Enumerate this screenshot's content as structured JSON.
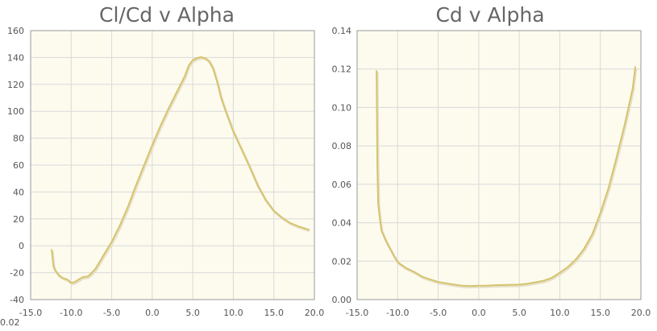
{
  "colors": {
    "plot_background": "#fdfbee",
    "grid": "#d9d9d9",
    "axis": "#999999",
    "series_line": "#d5c46e",
    "shadow": "#e6e0c8",
    "title_text": "#666666",
    "tick_text": "#555555"
  },
  "stray_label": "0.02",
  "chart_data": [
    {
      "type": "line",
      "title": "Cl/Cd v Alpha",
      "xlabel": "",
      "ylabel": "",
      "xlim": [
        -15,
        20
      ],
      "ylim": [
        -40,
        160
      ],
      "grid": true,
      "x_ticks": [
        -15,
        -10,
        -5,
        0,
        5,
        10,
        15,
        20
      ],
      "x_tick_labels": [
        "-15.0",
        "-10.0",
        "-5.0",
        "0.0",
        "5.0",
        "10.0",
        "15.0",
        "20.0"
      ],
      "y_ticks": [
        -40,
        -20,
        0,
        20,
        40,
        60,
        80,
        100,
        120,
        140,
        160
      ],
      "y_tick_labels": [
        "-40",
        "-20",
        "0",
        "20",
        "40",
        "60",
        "80",
        "100",
        "120",
        "140",
        "160"
      ],
      "series": [
        {
          "x": [
            -12.4,
            -12.2,
            -12.0,
            -11.5,
            -11.0,
            -10.5,
            -10.0,
            -9.6,
            -9.2,
            -8.8,
            -8.4,
            -8.0,
            -7.6,
            -7.0,
            -6.0,
            -5.0,
            -4.0,
            -3.0,
            -2.0,
            -1.0,
            0.0,
            1.0,
            2.0,
            3.0,
            4.0,
            4.5,
            5.0,
            5.5,
            6.0,
            6.5,
            7.0,
            7.5,
            8.0,
            8.5,
            9.0,
            10.0,
            11.0,
            12.0,
            13.0,
            14.0,
            15.0,
            16.0,
            17.0,
            18.0,
            19.3
          ],
          "y": [
            -3,
            -15,
            -18,
            -22,
            -24,
            -25,
            -27.5,
            -27,
            -25.5,
            -24,
            -23,
            -23,
            -21,
            -17,
            -7,
            3,
            15,
            29,
            45,
            60,
            75,
            89,
            102,
            114,
            126,
            134,
            138,
            139.5,
            140.3,
            139.5,
            137.5,
            132,
            122,
            110,
            101,
            85,
            72,
            59,
            45,
            34,
            26,
            21,
            17,
            14.5,
            12
          ]
        }
      ]
    },
    {
      "type": "line",
      "title": "Cd v Alpha",
      "xlabel": "",
      "ylabel": "",
      "xlim": [
        -15,
        20
      ],
      "ylim": [
        0,
        0.14
      ],
      "grid": true,
      "x_ticks": [
        -15,
        -10,
        -5,
        0,
        5,
        10,
        15,
        20
      ],
      "x_tick_labels": [
        "-15.0",
        "-10.0",
        "-5.0",
        "0.0",
        "5.0",
        "10.0",
        "15.0",
        "20.0"
      ],
      "y_ticks": [
        0,
        0.02,
        0.04,
        0.06,
        0.08,
        0.1,
        0.12,
        0.14
      ],
      "y_tick_labels": [
        "0.00",
        "0.02",
        "0.04",
        "0.06",
        "0.08",
        "0.10",
        "0.12",
        "0.14"
      ],
      "series": [
        {
          "x": [
            -12.6,
            -12.5,
            -12.4,
            -12.2,
            -12.0,
            -11.5,
            -11.0,
            -10.5,
            -10.0,
            -9.0,
            -8.0,
            -7.0,
            -6.0,
            -5.0,
            -4.0,
            -3.0,
            -2.0,
            -1.0,
            0.0,
            1.0,
            2.0,
            3.0,
            4.0,
            5.0,
            6.0,
            7.0,
            8.0,
            9.0,
            10.0,
            11.0,
            12.0,
            13.0,
            14.0,
            15.0,
            16.0,
            17.0,
            18.0,
            19.0,
            19.3
          ],
          "y": [
            0.119,
            0.07,
            0.05,
            0.042,
            0.036,
            0.031,
            0.027,
            0.023,
            0.0195,
            0.0165,
            0.0145,
            0.012,
            0.0105,
            0.0092,
            0.0085,
            0.0078,
            0.0072,
            0.0071,
            0.0072,
            0.0073,
            0.0075,
            0.0076,
            0.0077,
            0.0078,
            0.0083,
            0.009,
            0.0098,
            0.0113,
            0.014,
            0.017,
            0.021,
            0.0265,
            0.034,
            0.045,
            0.058,
            0.074,
            0.091,
            0.11,
            0.121
          ]
        }
      ]
    }
  ]
}
